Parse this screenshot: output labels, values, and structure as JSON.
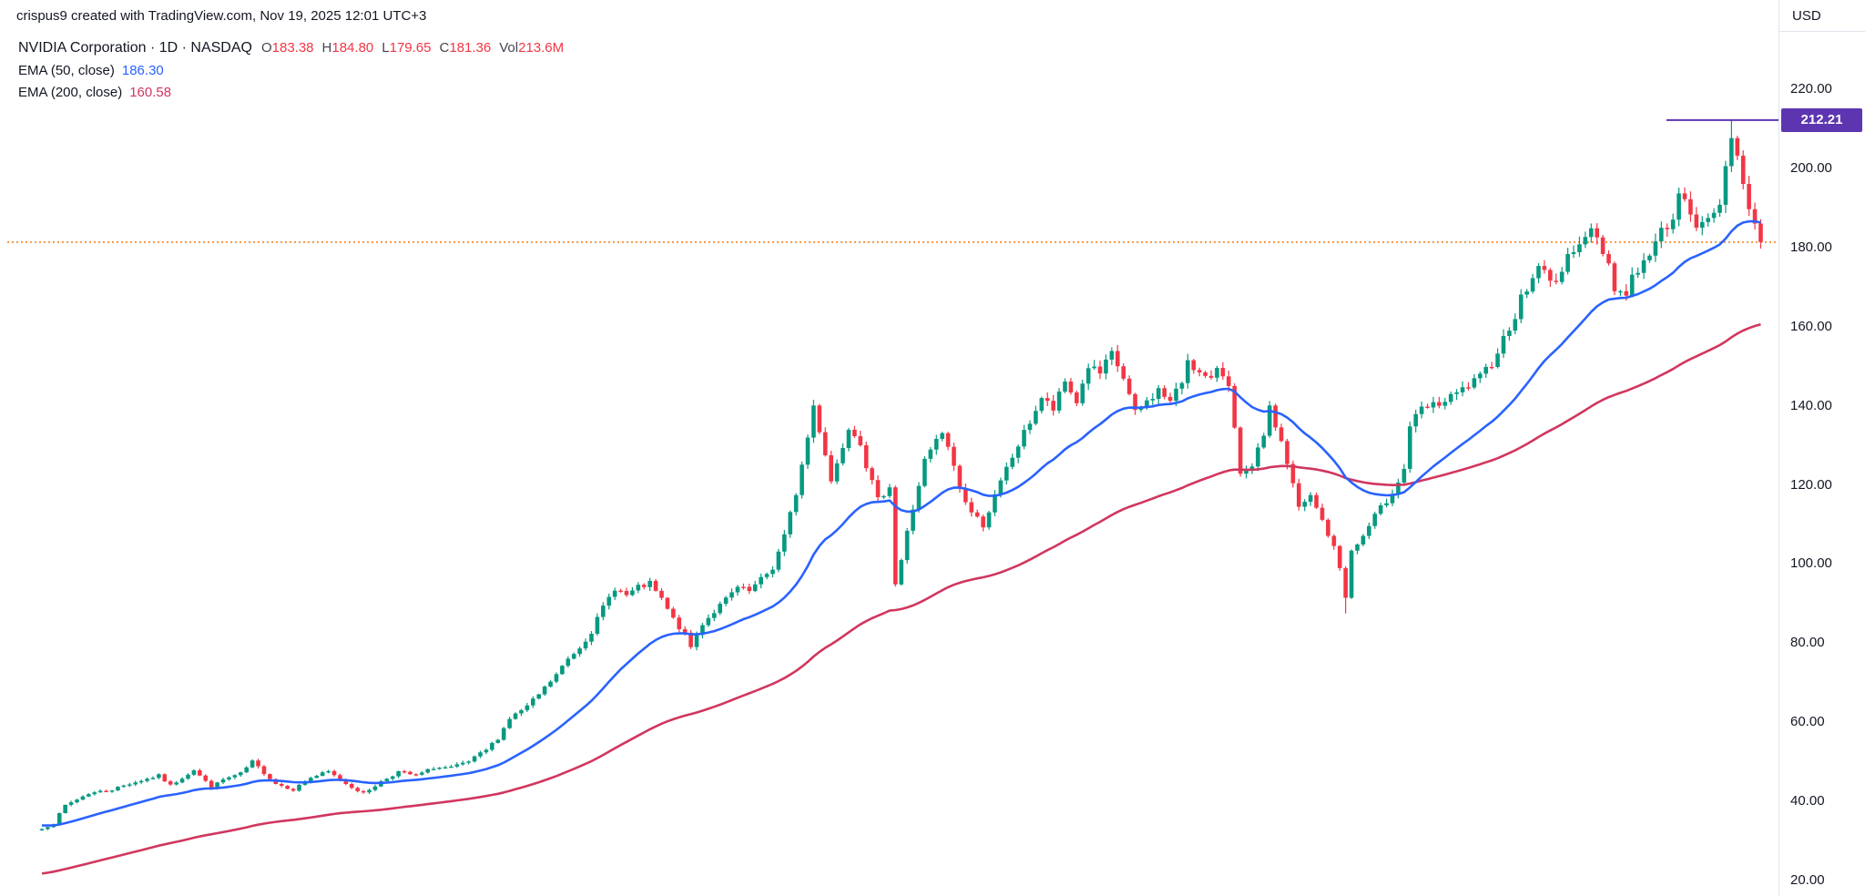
{
  "attribution": "crispus9 created with TradingView.com, Nov 19, 2025 12:01 UTC+3",
  "legend": {
    "symbol_text": "NVIDIA Corporation · 1D · NASDAQ",
    "ohlc": [
      {
        "label": "O",
        "value": "183.38"
      },
      {
        "label": "H",
        "value": "184.80"
      },
      {
        "label": "L",
        "value": "179.65"
      },
      {
        "label": "C",
        "value": "181.36"
      },
      {
        "label": "Vol",
        "value": "213.6M"
      }
    ],
    "ohlc_value_color": "#f23645",
    "indicators": [
      {
        "label": "EMA (50, close)",
        "value": "186.30",
        "color": "#2962ff"
      },
      {
        "label": "EMA (200, close)",
        "value": "160.58",
        "color": "#d1365e"
      }
    ]
  },
  "axis": {
    "currency": "USD",
    "labels": [
      "220.00",
      "200.00",
      "180.00",
      "160.00",
      "140.00",
      "120.00",
      "100.00",
      "80.00",
      "60.00",
      "40.00",
      "20.00"
    ]
  },
  "price_label": {
    "value": "212.21",
    "color": "#5e35b1"
  },
  "chart_data": {
    "type": "candlestick",
    "title": "NVIDIA Corporation",
    "interval": "1D",
    "exchange": "NASDAQ",
    "currency": "USD",
    "last_ohlc": {
      "open": 183.38,
      "high": 184.8,
      "low": 179.65,
      "close": 181.36,
      "volume": "213.6M"
    },
    "y_ticks": [
      20,
      40,
      60,
      80,
      100,
      120,
      140,
      160,
      180,
      200,
      220
    ],
    "y_range": [
      15,
      225
    ],
    "grid": false,
    "price_line": {
      "value": 181.36,
      "style": "dotted",
      "color": "#f7831c"
    },
    "horizontal_line": {
      "value": 212.21,
      "color": "#5e35b1"
    },
    "colors": {
      "up": "#089981",
      "down": "#f23645"
    },
    "series": [
      {
        "name": "EMA (50, close)",
        "period": 27,
        "seed": 34,
        "last_value": 186.3,
        "color": "#2962ff"
      },
      {
        "name": "EMA (200, close)",
        "period": 95,
        "seed": 21.5,
        "last_value": 160.58,
        "color": "#d1365e"
      }
    ],
    "candle_count": 295,
    "close_anchors": [
      [
        0,
        33
      ],
      [
        2,
        34.5
      ],
      [
        4,
        39
      ],
      [
        8,
        42
      ],
      [
        12,
        43
      ],
      [
        15,
        44.5
      ],
      [
        20,
        46.5
      ],
      [
        22,
        44
      ],
      [
        26,
        48
      ],
      [
        29,
        43.5
      ],
      [
        31,
        45.5
      ],
      [
        34,
        47
      ],
      [
        36,
        50
      ],
      [
        40,
        44.5
      ],
      [
        43,
        43
      ],
      [
        46,
        46
      ],
      [
        49,
        47.5
      ],
      [
        52,
        44.5
      ],
      [
        55,
        42
      ],
      [
        58,
        45
      ],
      [
        61,
        47.5
      ],
      [
        64,
        46.5
      ],
      [
        67,
        48.5
      ],
      [
        70,
        48.5
      ],
      [
        73,
        50
      ],
      [
        76,
        53
      ],
      [
        78,
        56
      ],
      [
        80,
        61
      ],
      [
        83,
        64
      ],
      [
        85,
        67
      ],
      [
        88,
        72
      ],
      [
        90,
        76
      ],
      [
        92,
        79
      ],
      [
        94,
        83
      ],
      [
        96,
        89
      ],
      [
        98,
        94
      ],
      [
        100,
        92
      ],
      [
        102,
        94
      ],
      [
        104,
        95
      ],
      [
        106,
        91
      ],
      [
        108,
        86
      ],
      [
        110,
        82
      ],
      [
        111,
        79
      ],
      [
        113,
        85
      ],
      [
        115,
        88
      ],
      [
        117,
        91
      ],
      [
        119,
        94
      ],
      [
        121,
        93
      ],
      [
        123,
        96
      ],
      [
        125,
        99
      ],
      [
        127,
        107
      ],
      [
        129,
        118
      ],
      [
        131,
        132
      ],
      [
        132,
        140
      ],
      [
        134,
        128
      ],
      [
        135,
        121
      ],
      [
        137,
        130
      ],
      [
        138,
        135
      ],
      [
        140,
        131
      ],
      [
        141,
        125
      ],
      [
        143,
        116
      ],
      [
        145,
        120
      ],
      [
        146,
        95
      ],
      [
        147,
        101
      ],
      [
        148,
        108
      ],
      [
        150,
        120
      ],
      [
        151,
        126
      ],
      [
        153,
        131
      ],
      [
        154,
        133
      ],
      [
        156,
        125
      ],
      [
        157,
        119
      ],
      [
        159,
        113
      ],
      [
        161,
        110
      ],
      [
        163,
        117
      ],
      [
        165,
        124
      ],
      [
        168,
        133
      ],
      [
        171,
        142
      ],
      [
        173,
        139
      ],
      [
        175,
        146
      ],
      [
        177,
        141
      ],
      [
        179,
        150
      ],
      [
        181,
        148
      ],
      [
        183,
        153
      ],
      [
        185,
        147
      ],
      [
        187,
        138
      ],
      [
        189,
        141
      ],
      [
        191,
        144
      ],
      [
        193,
        141
      ],
      [
        195,
        146
      ],
      [
        196,
        152
      ],
      [
        198,
        148
      ],
      [
        200,
        146
      ],
      [
        201,
        150
      ],
      [
        203,
        146
      ],
      [
        205,
        122
      ],
      [
        207,
        124
      ],
      [
        209,
        133
      ],
      [
        210,
        139
      ],
      [
        212,
        131
      ],
      [
        214,
        120
      ],
      [
        215,
        114
      ],
      [
        217,
        117
      ],
      [
        219,
        111
      ],
      [
        221,
        104
      ],
      [
        222,
        99
      ],
      [
        223,
        92
      ],
      [
        224,
        103
      ],
      [
        226,
        107
      ],
      [
        228,
        112
      ],
      [
        230,
        116
      ],
      [
        232,
        121
      ],
      [
        233,
        124
      ],
      [
        234,
        135
      ],
      [
        236,
        139
      ],
      [
        238,
        140
      ],
      [
        240,
        141
      ],
      [
        242,
        143
      ],
      [
        244,
        145
      ],
      [
        246,
        147
      ],
      [
        248,
        151
      ],
      [
        250,
        157
      ],
      [
        252,
        163
      ],
      [
        253,
        167
      ],
      [
        255,
        172
      ],
      [
        256,
        176
      ],
      [
        258,
        171
      ],
      [
        260,
        174
      ],
      [
        262,
        180
      ],
      [
        263,
        182
      ],
      [
        265,
        184
      ],
      [
        266,
        182
      ],
      [
        268,
        176
      ],
      [
        269,
        170
      ],
      [
        271,
        168
      ],
      [
        272,
        173
      ],
      [
        274,
        176
      ],
      [
        276,
        181
      ],
      [
        277,
        184
      ],
      [
        279,
        188
      ],
      [
        280,
        193
      ],
      [
        282,
        189
      ],
      [
        283,
        184
      ],
      [
        285,
        188
      ],
      [
        287,
        192
      ],
      [
        288,
        199
      ],
      [
        289,
        207
      ],
      [
        290,
        204
      ],
      [
        291,
        196
      ],
      [
        292,
        191
      ],
      [
        293,
        186
      ],
      [
        294,
        181.36
      ]
    ],
    "wick_overrides": [
      {
        "index": 289,
        "high": 212.21
      },
      {
        "index": 223,
        "low": 87.5
      },
      {
        "index": 132,
        "high": 141.5
      }
    ]
  }
}
